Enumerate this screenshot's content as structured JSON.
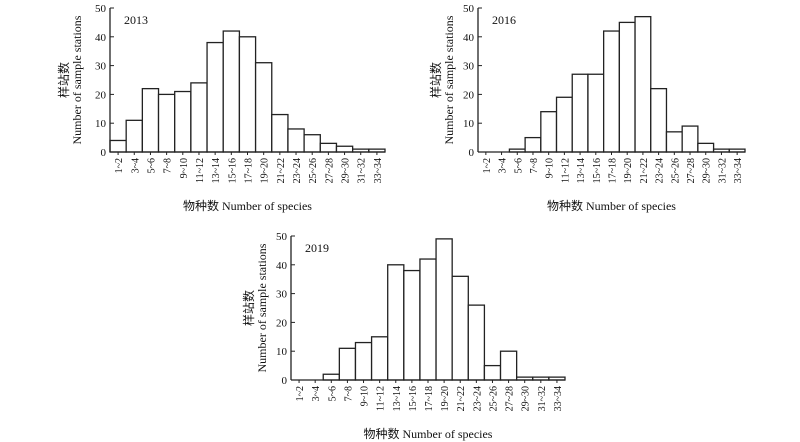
{
  "chart_data": [
    {
      "type": "bar",
      "title": "2013",
      "xlabel": "物种数 Number of species",
      "ylabel_cn": "样站数",
      "ylabel": "Number of sample stations",
      "categories": [
        "1~2",
        "3~4",
        "5~6",
        "7~8",
        "9~10",
        "11~12",
        "13~14",
        "15~16",
        "17~18",
        "19~20",
        "21~22",
        "23~24",
        "25~26",
        "27~28",
        "29~30",
        "31~32",
        "33~34"
      ],
      "values": [
        4,
        11,
        22,
        20,
        21,
        24,
        38,
        42,
        40,
        31,
        13,
        8,
        6,
        3,
        2,
        1,
        1
      ],
      "ylim": [
        0,
        50
      ],
      "yticks": [
        0,
        10,
        20,
        30,
        40,
        50
      ]
    },
    {
      "type": "bar",
      "title": "2016",
      "xlabel": "物种数 Number of species",
      "ylabel_cn": "样站数",
      "ylabel": "Number of sample stations",
      "categories": [
        "1~2",
        "3~4",
        "5~6",
        "7~8",
        "9~10",
        "11~12",
        "13~14",
        "15~16",
        "17~18",
        "19~20",
        "21~22",
        "23~24",
        "25~26",
        "27~28",
        "29~30",
        "31~32",
        "33~34"
      ],
      "values": [
        0,
        0,
        1,
        5,
        14,
        19,
        27,
        27,
        42,
        45,
        47,
        22,
        7,
        9,
        3,
        1,
        1
      ],
      "ylim": [
        0,
        50
      ],
      "yticks": [
        0,
        10,
        20,
        30,
        40,
        50
      ]
    },
    {
      "type": "bar",
      "title": "2019",
      "xlabel": "物种数 Number of species",
      "ylabel_cn": "样站数",
      "ylabel": "Number of sample stations",
      "categories": [
        "1~2",
        "3~4",
        "5~6",
        "7~8",
        "9~10",
        "11~12",
        "13~14",
        "15~16",
        "17~18",
        "19~20",
        "21~22",
        "23~24",
        "25~26",
        "27~28",
        "29~30",
        "31~32",
        "33~34"
      ],
      "values": [
        0,
        0,
        2,
        11,
        13,
        15,
        40,
        38,
        42,
        49,
        36,
        26,
        5,
        10,
        1,
        1,
        1
      ],
      "ylim": [
        0,
        50
      ],
      "yticks": [
        0,
        10,
        20,
        30,
        40,
        50
      ]
    }
  ]
}
